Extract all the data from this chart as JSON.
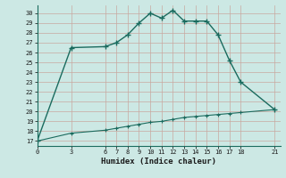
{
  "xlabel": "Humidex (Indice chaleur)",
  "bg_color": "#cce8e4",
  "grid_color": "#b8d8d4",
  "line_color": "#1a6b5e",
  "upper_x": [
    0,
    3,
    6,
    7,
    8,
    9,
    10,
    11,
    12,
    13,
    14,
    15,
    16,
    17,
    18,
    21
  ],
  "upper_y": [
    17,
    26.5,
    26.6,
    27.0,
    27.8,
    29.0,
    30.0,
    29.5,
    30.3,
    29.2,
    29.2,
    29.2,
    27.8,
    25.2,
    23.0,
    20.2
  ],
  "lower_x": [
    0,
    3,
    6,
    7,
    8,
    9,
    10,
    11,
    12,
    13,
    14,
    15,
    16,
    17,
    18,
    21
  ],
  "lower_y": [
    17,
    17.8,
    18.1,
    18.3,
    18.5,
    18.7,
    18.9,
    19.0,
    19.2,
    19.4,
    19.5,
    19.6,
    19.7,
    19.8,
    19.9,
    20.2
  ],
  "xticks": [
    0,
    3,
    6,
    7,
    8,
    9,
    10,
    11,
    12,
    13,
    14,
    15,
    16,
    17,
    18,
    21
  ],
  "yticks": [
    17,
    18,
    19,
    20,
    21,
    22,
    23,
    24,
    25,
    26,
    27,
    28,
    29,
    30
  ],
  "ylim": [
    16.5,
    30.8
  ],
  "xlim": [
    0,
    21.5
  ]
}
